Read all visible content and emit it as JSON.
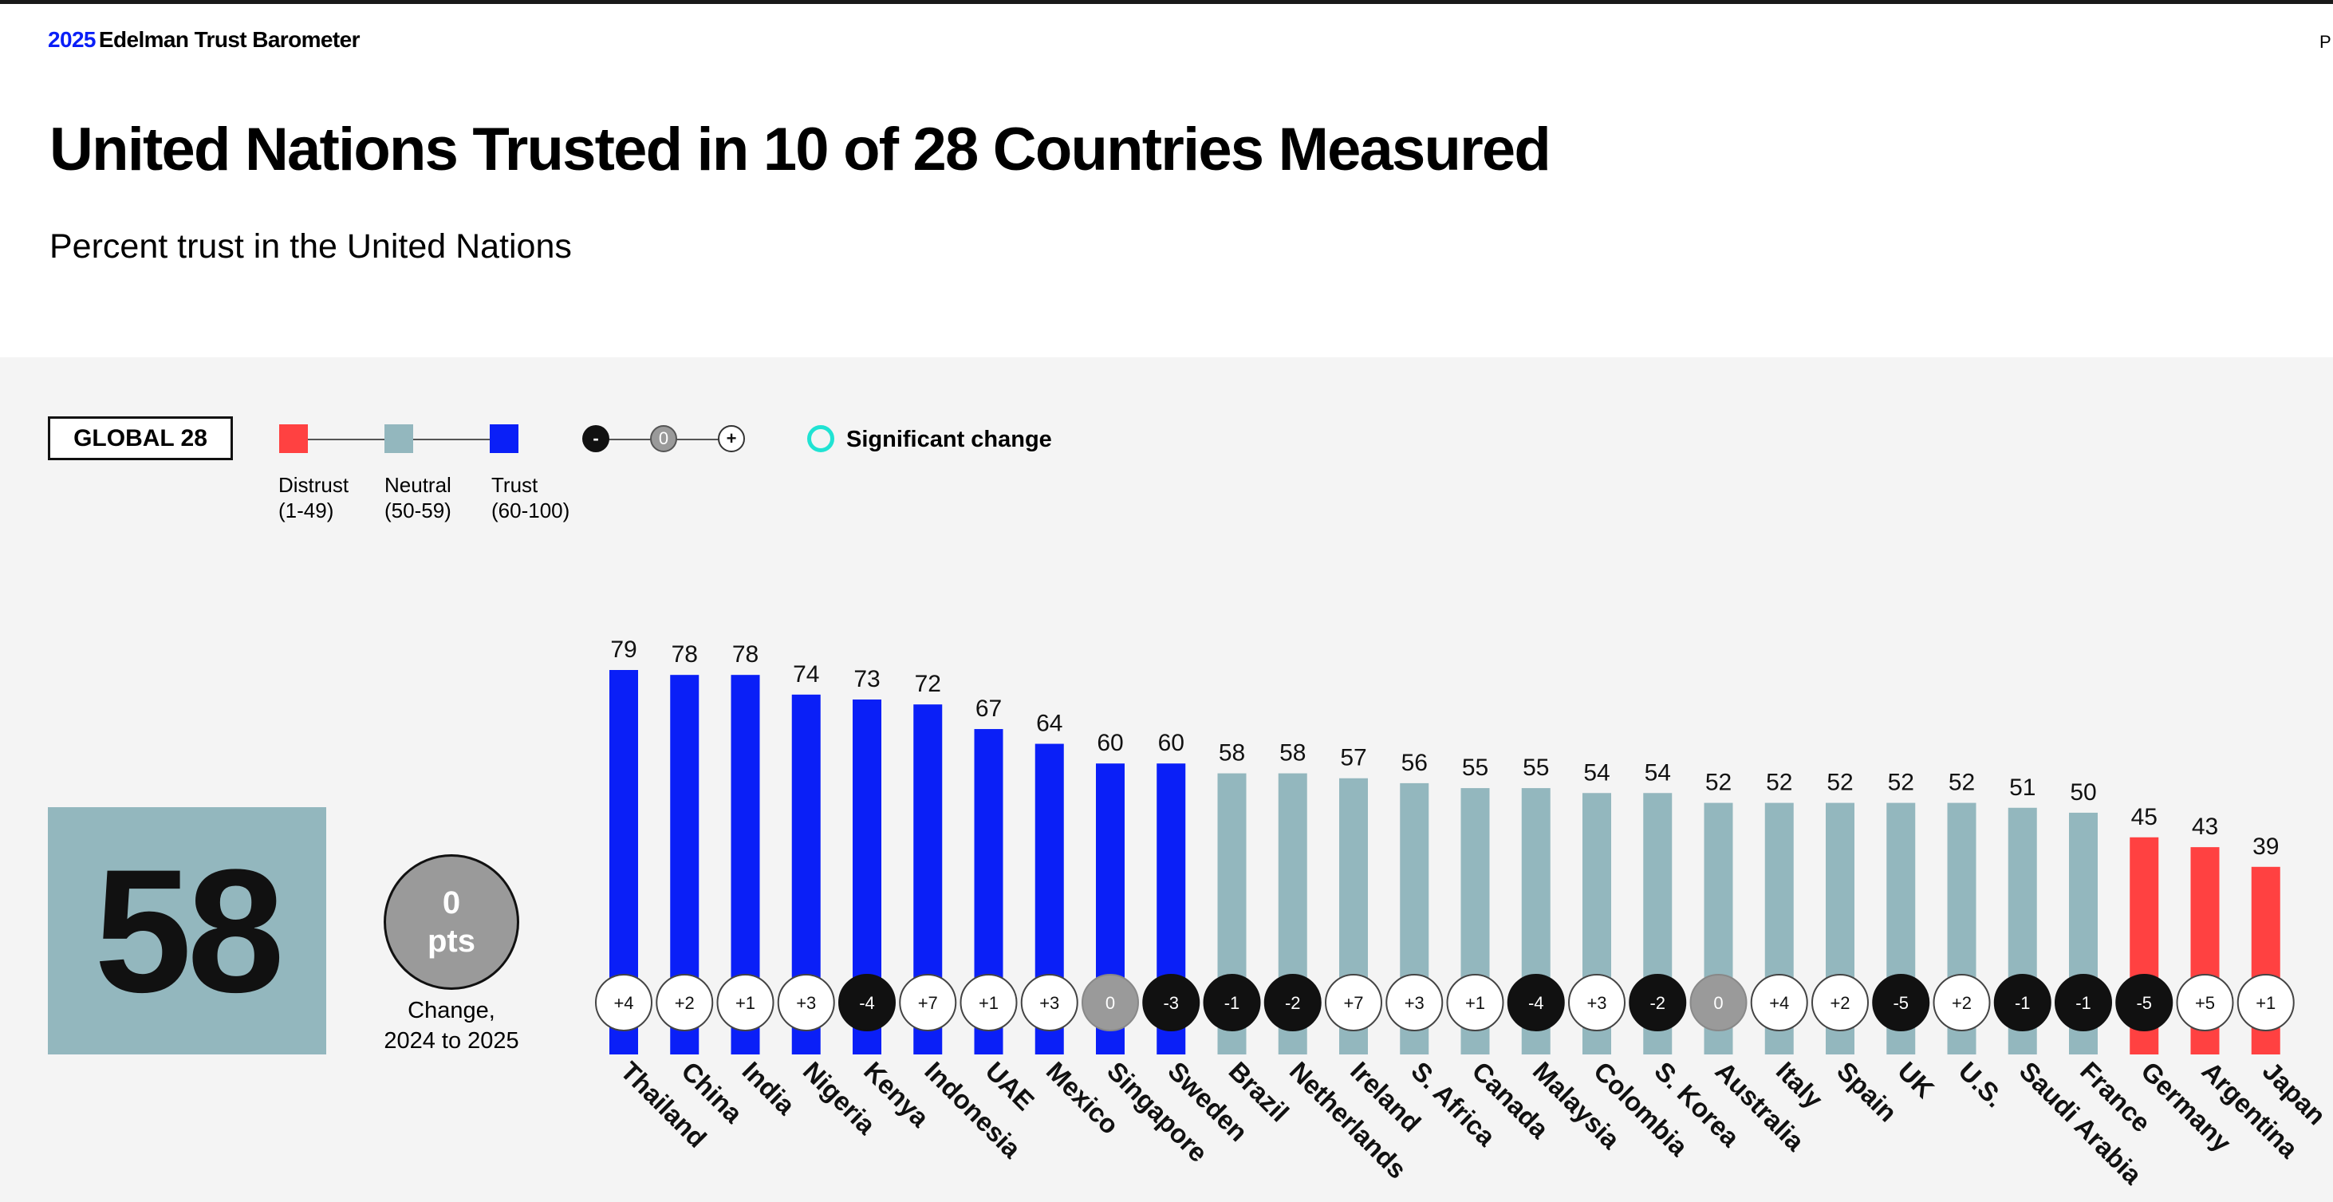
{
  "header": {
    "brand_year": "2025",
    "brand_name": "Edelman Trust Barometer",
    "page_marker": "P"
  },
  "title": "United Nations Trusted in 10 of 28 Countries Measured",
  "subtitle": "Percent trust in the United Nations",
  "legend": {
    "global_label": "GLOBAL 28",
    "categories": [
      {
        "name": "Distrust",
        "range": "(1-49)",
        "color": "#ff4141"
      },
      {
        "name": "Neutral",
        "range": "(50-59)",
        "color": "#93b7be"
      },
      {
        "name": "Trust",
        "range": "(60-100)",
        "color": "#0a1ff7"
      }
    ],
    "change_symbols": {
      "minus": "-",
      "zero": "0",
      "plus": "+"
    },
    "significant_label": "Significant change",
    "significant_color": "#20e3d3"
  },
  "global": {
    "value": "58",
    "change_value": "0",
    "change_unit": "pts",
    "change_caption_line1": "Change,",
    "change_caption_line2": "2024 to 2025"
  },
  "chart_data": {
    "type": "bar",
    "title": "Percent trust in the United Nations",
    "ylim": [
      0,
      100
    ],
    "thresholds": {
      "distrust": [
        1,
        49
      ],
      "neutral": [
        50,
        59
      ],
      "trust": [
        60,
        100
      ]
    },
    "categories": [
      "Thailand",
      "China",
      "India",
      "Nigeria",
      "Kenya",
      "Indonesia",
      "UAE",
      "Mexico",
      "Singapore",
      "Sweden",
      "Brazil",
      "Netherlands",
      "Ireland",
      "S. Africa",
      "Canada",
      "Malaysia",
      "Colombia",
      "S. Korea",
      "Australia",
      "Italy",
      "Spain",
      "UK",
      "U.S.",
      "Saudi Arabia",
      "France",
      "Germany",
      "Argentina",
      "Japan"
    ],
    "values": [
      79,
      78,
      78,
      74,
      73,
      72,
      67,
      64,
      60,
      60,
      58,
      58,
      57,
      56,
      55,
      55,
      54,
      54,
      52,
      52,
      52,
      52,
      52,
      51,
      50,
      45,
      43,
      39
    ],
    "change": [
      "+4",
      "+2",
      "+1",
      "+3",
      "-4",
      "+7",
      "+1",
      "+3",
      "0",
      "-3",
      "-1",
      "-2",
      "+7",
      "+3",
      "+1",
      "-4",
      "+3",
      "-2",
      "0",
      "+4",
      "+2",
      "-5",
      "+2",
      "-1",
      "-1",
      "-5",
      "+5",
      "+1"
    ]
  }
}
